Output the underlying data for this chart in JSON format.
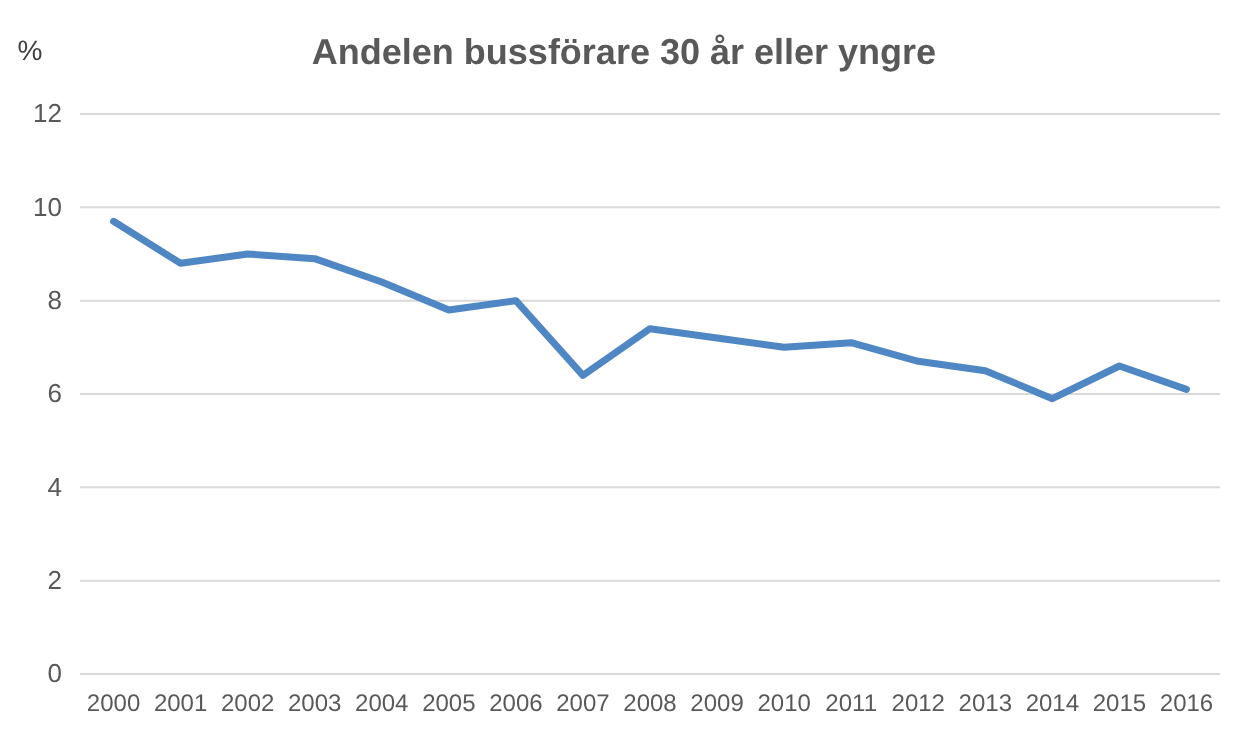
{
  "chart_data": {
    "type": "line",
    "title": "Andelen bussförare 30 år eller yngre",
    "ylabel": "%",
    "categories": [
      "2000",
      "2001",
      "2002",
      "2003",
      "2004",
      "2005",
      "2006",
      "2007",
      "2008",
      "2009",
      "2010",
      "2011",
      "2012",
      "2013",
      "2014",
      "2015",
      "2016"
    ],
    "series": [
      {
        "color": "#4f86c4",
        "values": [
          9.7,
          8.8,
          9.0,
          8.9,
          8.4,
          7.8,
          8.0,
          6.4,
          7.4,
          7.2,
          7.0,
          7.1,
          6.7,
          6.5,
          5.9,
          6.6,
          6.1
        ]
      }
    ],
    "ylim": [
      0,
      12
    ],
    "yticks": [
      0,
      2,
      4,
      6,
      8,
      10,
      12
    ],
    "grid": "y",
    "marker": "none",
    "line_style": "solid"
  }
}
